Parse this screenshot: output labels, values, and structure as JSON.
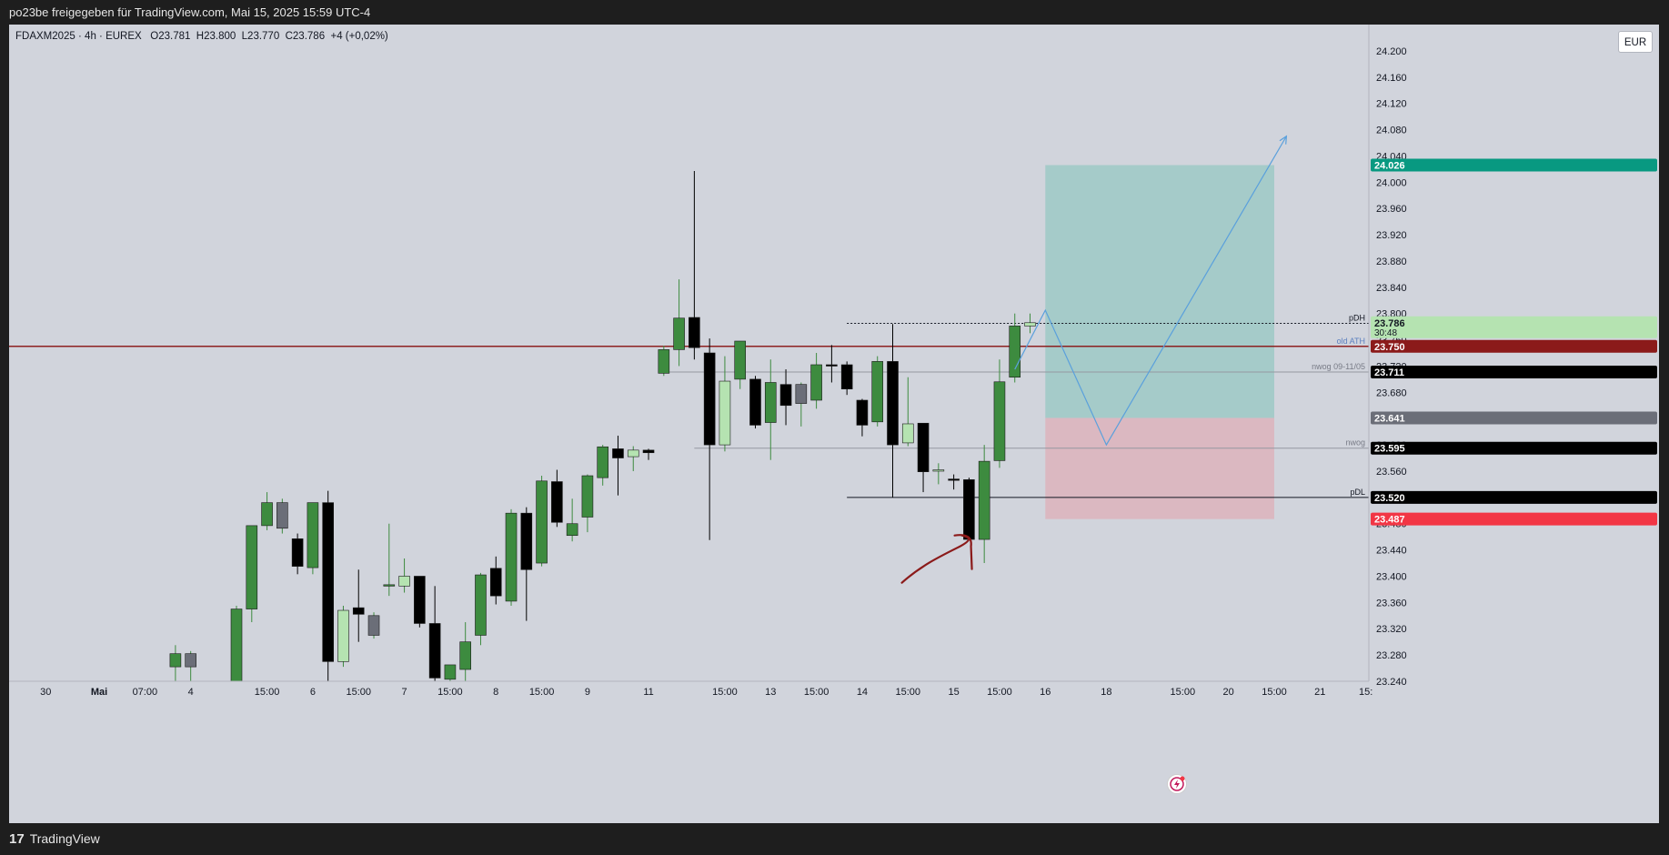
{
  "header": {
    "text": "po23be freigegeben für TradingView.com, Mai 15, 2025 15:59 UTC-4"
  },
  "symbol": {
    "info": "FDAXM2025 · 4h · EUREX   O23.781  H23.800  L23.770  C23.786  +4 (+0,02%)"
  },
  "currency": {
    "label": "EUR"
  },
  "footer": {
    "brand": "TradingView",
    "logo": "17"
  },
  "colors": {
    "up": "#3d8b3f",
    "down": "#000000",
    "light": "#b5e3b1",
    "gray": "#6b6e78",
    "ath": "#8b1a1a",
    "target": "#9ec9c6",
    "stop": "#dcb5be",
    "path": "#5aa0dc",
    "arrow": "#8b1a1a"
  },
  "chart_data": {
    "type": "candlestick",
    "y_ticks": [
      "24.200",
      "24.160",
      "24.120",
      "24.080",
      "24.040",
      "24.000",
      "23.960",
      "23.920",
      "23.880",
      "23.840",
      "23.800",
      "23.760",
      "23.720",
      "23.680",
      "23.640",
      "23.600",
      "23.560",
      "23.520",
      "23.480",
      "23.440",
      "23.400",
      "23.360",
      "23.320",
      "23.280",
      "23.240"
    ],
    "x_ticks": [
      {
        "label": "30",
        "t": 0.5
      },
      {
        "label": "Mai",
        "t": 4
      },
      {
        "label": "07:00",
        "t": 7
      },
      {
        "label": "4",
        "t": 10
      },
      {
        "label": "15:00",
        "t": 15
      },
      {
        "label": "6",
        "t": 18
      },
      {
        "label": "15:00",
        "t": 21
      },
      {
        "label": "7",
        "t": 24
      },
      {
        "label": "15:00",
        "t": 27
      },
      {
        "label": "8",
        "t": 30
      },
      {
        "label": "15:00",
        "t": 33
      },
      {
        "label": "9",
        "t": 36
      },
      {
        "label": "11",
        "t": 40
      },
      {
        "label": "15:00",
        "t": 45
      },
      {
        "label": "13",
        "t": 48
      },
      {
        "label": "15:00",
        "t": 51
      },
      {
        "label": "14",
        "t": 54
      },
      {
        "label": "15:00",
        "t": 57
      },
      {
        "label": "15",
        "t": 60
      },
      {
        "label": "15:00",
        "t": 63
      },
      {
        "label": "16",
        "t": 66
      },
      {
        "label": "18",
        "t": 70
      },
      {
        "label": "15:00",
        "t": 75
      },
      {
        "label": "20",
        "t": 78
      },
      {
        "label": "15:00",
        "t": 81
      },
      {
        "label": "21",
        "t": 84
      },
      {
        "label": "15:",
        "t": 87
      }
    ],
    "candles": [
      {
        "t": 9,
        "o": 23.262,
        "h": 23.295,
        "l": 23.24,
        "c": 23.282,
        "col": "up"
      },
      {
        "t": 10,
        "o": 23.262,
        "h": 23.286,
        "l": 23.24,
        "c": 23.282,
        "col": "gray"
      },
      {
        "t": 13,
        "o": 23.24,
        "h": 23.355,
        "l": 23.24,
        "c": 23.35,
        "col": "up"
      },
      {
        "t": 14,
        "o": 23.35,
        "h": 23.475,
        "l": 23.33,
        "c": 23.477,
        "col": "up"
      },
      {
        "t": 15,
        "o": 23.477,
        "h": 23.528,
        "l": 23.47,
        "c": 23.512,
        "col": "up"
      },
      {
        "t": 16,
        "o": 23.512,
        "h": 23.518,
        "l": 23.465,
        "c": 23.473,
        "col": "gray"
      },
      {
        "t": 17,
        "o": 23.457,
        "h": 23.465,
        "l": 23.403,
        "c": 23.415,
        "col": "down"
      },
      {
        "t": 18,
        "o": 23.413,
        "h": 23.512,
        "l": 23.403,
        "c": 23.512,
        "col": "up"
      },
      {
        "t": 19,
        "o": 23.512,
        "h": 23.53,
        "l": 23.23,
        "c": 23.27,
        "col": "down"
      },
      {
        "t": 20,
        "o": 23.27,
        "h": 23.355,
        "l": 23.262,
        "c": 23.348,
        "col": "light"
      },
      {
        "t": 21,
        "o": 23.352,
        "h": 23.41,
        "l": 23.3,
        "c": 23.342,
        "col": "down"
      },
      {
        "t": 22,
        "o": 23.34,
        "h": 23.345,
        "l": 23.305,
        "c": 23.31,
        "col": "gray"
      },
      {
        "t": 23,
        "o": 23.387,
        "h": 23.48,
        "l": 23.37,
        "c": 23.387,
        "col": "up"
      },
      {
        "t": 24,
        "o": 23.385,
        "h": 23.427,
        "l": 23.375,
        "c": 23.4,
        "col": "light"
      },
      {
        "t": 25,
        "o": 23.4,
        "h": 23.4,
        "l": 23.322,
        "c": 23.328,
        "col": "down"
      },
      {
        "t": 26,
        "o": 23.328,
        "h": 23.385,
        "l": 23.24,
        "c": 23.245,
        "col": "down"
      },
      {
        "t": 27,
        "o": 23.243,
        "h": 23.26,
        "l": 23.24,
        "c": 23.265,
        "col": "up"
      },
      {
        "t": 28,
        "o": 23.258,
        "h": 23.33,
        "l": 23.24,
        "c": 23.3,
        "col": "up"
      },
      {
        "t": 29,
        "o": 23.31,
        "h": 23.405,
        "l": 23.295,
        "c": 23.402,
        "col": "up"
      },
      {
        "t": 30,
        "o": 23.37,
        "h": 23.43,
        "l": 23.357,
        "c": 23.412,
        "col": "down"
      },
      {
        "t": 31,
        "o": 23.362,
        "h": 23.502,
        "l": 23.355,
        "c": 23.496,
        "col": "up"
      },
      {
        "t": 32,
        "o": 23.496,
        "h": 23.505,
        "l": 23.332,
        "c": 23.41,
        "col": "down"
      },
      {
        "t": 33,
        "o": 23.42,
        "h": 23.553,
        "l": 23.415,
        "c": 23.545,
        "col": "up"
      },
      {
        "t": 34,
        "o": 23.544,
        "h": 23.562,
        "l": 23.475,
        "c": 23.482,
        "col": "down"
      },
      {
        "t": 35,
        "o": 23.48,
        "h": 23.518,
        "l": 23.453,
        "c": 23.462,
        "col": "up"
      },
      {
        "t": 36,
        "o": 23.49,
        "h": 23.555,
        "l": 23.467,
        "c": 23.553,
        "col": "up"
      },
      {
        "t": 37,
        "o": 23.55,
        "h": 23.6,
        "l": 23.538,
        "c": 23.597,
        "col": "up"
      },
      {
        "t": 38,
        "o": 23.594,
        "h": 23.614,
        "l": 23.523,
        "c": 23.58,
        "col": "down"
      },
      {
        "t": 39,
        "o": 23.582,
        "h": 23.598,
        "l": 23.56,
        "c": 23.592,
        "col": "light"
      },
      {
        "t": 40,
        "o": 23.592,
        "h": 23.594,
        "l": 23.577,
        "c": 23.588,
        "col": "down"
      },
      {
        "t": 41,
        "o": 23.709,
        "h": 23.751,
        "l": 23.705,
        "c": 23.745,
        "col": "up"
      },
      {
        "t": 42,
        "o": 23.745,
        "h": 23.852,
        "l": 23.72,
        "c": 23.793,
        "col": "up"
      },
      {
        "t": 43,
        "o": 23.794,
        "h": 24.017,
        "l": 23.73,
        "c": 23.748,
        "col": "down"
      },
      {
        "t": 44,
        "o": 23.74,
        "h": 23.762,
        "l": 23.455,
        "c": 23.6,
        "col": "down"
      },
      {
        "t": 45,
        "o": 23.6,
        "h": 23.735,
        "l": 23.59,
        "c": 23.697,
        "col": "light"
      },
      {
        "t": 46,
        "o": 23.7,
        "h": 23.758,
        "l": 23.685,
        "c": 23.758,
        "col": "up"
      },
      {
        "t": 47,
        "o": 23.7,
        "h": 23.705,
        "l": 23.625,
        "c": 23.63,
        "col": "down"
      },
      {
        "t": 48,
        "o": 23.634,
        "h": 23.73,
        "l": 23.577,
        "c": 23.695,
        "col": "up"
      },
      {
        "t": 49,
        "o": 23.692,
        "h": 23.715,
        "l": 23.63,
        "c": 23.66,
        "col": "down"
      },
      {
        "t": 50,
        "o": 23.663,
        "h": 23.695,
        "l": 23.628,
        "c": 23.692,
        "col": "gray"
      },
      {
        "t": 51,
        "o": 23.668,
        "h": 23.74,
        "l": 23.655,
        "c": 23.722,
        "col": "up"
      },
      {
        "t": 52,
        "o": 23.722,
        "h": 23.752,
        "l": 23.695,
        "c": 23.72,
        "col": "down"
      },
      {
        "t": 53,
        "o": 23.722,
        "h": 23.727,
        "l": 23.676,
        "c": 23.685,
        "col": "down"
      },
      {
        "t": 54,
        "o": 23.668,
        "h": 23.67,
        "l": 23.613,
        "c": 23.63,
        "col": "down"
      },
      {
        "t": 55,
        "o": 23.635,
        "h": 23.735,
        "l": 23.628,
        "c": 23.727,
        "col": "up"
      },
      {
        "t": 56,
        "o": 23.727,
        "h": 23.784,
        "l": 23.52,
        "c": 23.6,
        "col": "down"
      },
      {
        "t": 57,
        "o": 23.603,
        "h": 23.703,
        "l": 23.598,
        "c": 23.632,
        "col": "light"
      },
      {
        "t": 58,
        "o": 23.633,
        "h": 23.633,
        "l": 23.528,
        "c": 23.559,
        "col": "down"
      },
      {
        "t": 59,
        "o": 23.56,
        "h": 23.572,
        "l": 23.54,
        "c": 23.562,
        "col": "light"
      },
      {
        "t": 60,
        "o": 23.548,
        "h": 23.555,
        "l": 23.532,
        "c": 23.547,
        "col": "down"
      },
      {
        "t": 61,
        "o": 23.547,
        "h": 23.55,
        "l": 23.456,
        "c": 23.456,
        "col": "down"
      },
      {
        "t": 62,
        "o": 23.456,
        "h": 23.6,
        "l": 23.42,
        "c": 23.575,
        "col": "up"
      },
      {
        "t": 63,
        "o": 23.576,
        "h": 23.73,
        "l": 23.565,
        "c": 23.696,
        "col": "up"
      },
      {
        "t": 64,
        "o": 23.703,
        "h": 23.8,
        "l": 23.695,
        "c": 23.781,
        "col": "up"
      },
      {
        "t": 65,
        "o": 23.781,
        "h": 23.8,
        "l": 23.77,
        "c": 23.786,
        "col": "light"
      }
    ],
    "levels": [
      {
        "label": "pDH",
        "value": 23.785,
        "style": "dotted",
        "start_t": 53
      },
      {
        "label": "old ATH",
        "value": 23.75,
        "style": "ath",
        "start_t": 0
      },
      {
        "label": "nwog 09-11/05",
        "value": 23.711,
        "style": "thin",
        "start_t": 41
      },
      {
        "label": "nwog",
        "value": 23.595,
        "style": "thin",
        "start_t": 43
      },
      {
        "label": "pDL",
        "value": 23.52,
        "style": "solid",
        "start_t": 53
      }
    ],
    "price_labels": [
      {
        "text": "24.026",
        "value": 24.026,
        "bg": "#089981",
        "fg": "#ffffff"
      },
      {
        "text": "23.786",
        "value": 23.786,
        "bg": "#b5e3b1",
        "fg": "#131722",
        "sub": "30:48"
      },
      {
        "text": "23.750",
        "value": 23.75,
        "bg": "#8b1a1a",
        "fg": "#ffffff"
      },
      {
        "text": "23.711",
        "value": 23.711,
        "bg": "#000000",
        "fg": "#ffffff"
      },
      {
        "text": "23.641",
        "value": 23.641,
        "bg": "#6b6e78",
        "fg": "#ffffff"
      },
      {
        "text": "23.595",
        "value": 23.595,
        "bg": "#000000",
        "fg": "#ffffff"
      },
      {
        "text": "23.520",
        "value": 23.52,
        "bg": "#000000",
        "fg": "#ffffff"
      },
      {
        "text": "23.487",
        "value": 23.487,
        "bg": "#f23645",
        "fg": "#ffffff"
      }
    ],
    "position": {
      "t_start": 66,
      "t_end": 81,
      "entry": 23.641,
      "target": 24.026,
      "stop": 23.487
    },
    "projection": [
      [
        64.0,
        23.715
      ],
      [
        66.0,
        23.805
      ],
      [
        70.0,
        23.6
      ],
      [
        81.8,
        24.07
      ]
    ],
    "ylim": [
      23.24,
      24.24
    ],
    "xlim": [
      -1.9,
      87.2
    ]
  }
}
